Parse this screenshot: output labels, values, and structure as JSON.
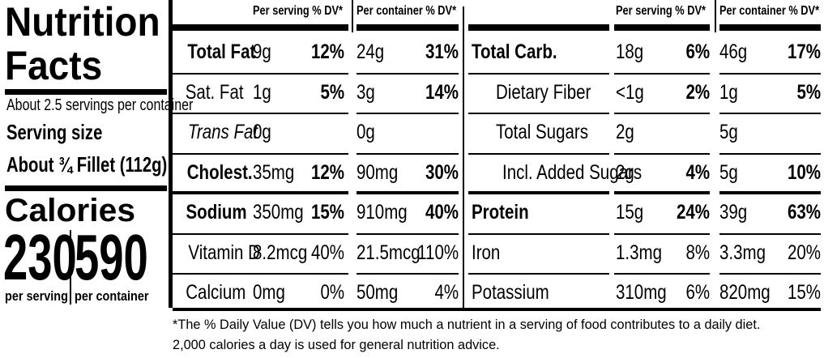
{
  "title_line1": "Nutrition",
  "title_line2": "Facts",
  "servings_per_container": "About 2.5 servings per container",
  "serving_size_label": "Serving size",
  "serving_size_value": "About ¾ Fillet (112g)",
  "calories_label": "Calories",
  "calories_per_serving": "230",
  "calories_per_container": "590",
  "per_serving_label": "per serving",
  "per_container_label": "per container",
  "header_per_serving": "Per serving % DV*",
  "header_per_container": "Per container % DV*",
  "left_rows": [
    {
      "name": "Total Fat",
      "s_amt": "9g",
      "s_dv": "12%",
      "c_amt": "24g",
      "c_dv": "31%"
    },
    {
      "name": "Sat. Fat",
      "s_amt": "1g",
      "s_dv": "5%",
      "c_amt": "3g",
      "c_dv": "14%"
    },
    {
      "name": "Trans Fat",
      "s_amt": "0g",
      "s_dv": "",
      "c_amt": "0g",
      "c_dv": ""
    },
    {
      "name": "Cholest.",
      "s_amt": "35mg",
      "s_dv": "12%",
      "c_amt": "90mg",
      "c_dv": "30%"
    },
    {
      "name": "Sodium",
      "s_amt": "350mg",
      "s_dv": "15%",
      "c_amt": "910mg",
      "c_dv": "40%"
    },
    {
      "name": "Vitamin D",
      "s_amt": "8.2mcg",
      "s_dv": "40%",
      "c_amt": "21.5mcg",
      "c_dv": "110%"
    },
    {
      "name": "Calcium",
      "s_amt": "0mg",
      "s_dv": "0%",
      "c_amt": "50mg",
      "c_dv": "4%"
    }
  ],
  "right_rows": [
    {
      "name": "Total Carb.",
      "s_amt": "18g",
      "s_dv": "6%",
      "c_amt": "46g",
      "c_dv": "17%"
    },
    {
      "name": "Dietary Fiber",
      "s_amt": "<1g",
      "s_dv": "2%",
      "c_amt": "1g",
      "c_dv": "5%"
    },
    {
      "name": "Total Sugars",
      "s_amt": "2g",
      "s_dv": "",
      "c_amt": "5g",
      "c_dv": ""
    },
    {
      "name": "Incl. Added Sugars",
      "s_amt": "2g",
      "s_dv": "4%",
      "c_amt": "5g",
      "c_dv": "10%"
    },
    {
      "name": "Protein",
      "s_amt": "15g",
      "s_dv": "24%",
      "c_amt": "39g",
      "c_dv": "63%"
    },
    {
      "name": "Iron",
      "s_amt": "1.3mg",
      "s_dv": "8%",
      "c_amt": "3.3mg",
      "c_dv": "20%"
    },
    {
      "name": "Potassium",
      "s_amt": "310mg",
      "s_dv": "6%",
      "c_amt": "820mg",
      "c_dv": "15%"
    }
  ],
  "footnote": "*The % Daily Value (DV) tells you how much a nutrient in a serving of food contributes to a daily diet. 2,000 calories a day is used for general nutrition advice."
}
